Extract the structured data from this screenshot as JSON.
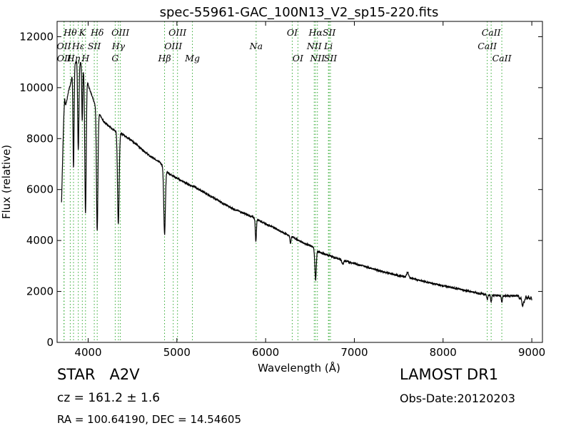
{
  "chart_data": {
    "type": "line",
    "title": "spec-55961-GAC_100N13_V2_sp15-220.fits",
    "xlabel": "Wavelength (Å)",
    "ylabel": "Flux (relative)",
    "xlim": [
      3650,
      9120
    ],
    "ylim": [
      0,
      12600
    ],
    "xticks": [
      4000,
      5000,
      6000,
      7000,
      8000,
      9000
    ],
    "yticks": [
      0,
      2000,
      4000,
      6000,
      8000,
      10000,
      12000
    ],
    "xtick_labels": [
      "4000",
      "5000",
      "6000",
      "7000",
      "8000",
      "9000"
    ],
    "ytick_labels": [
      "0",
      "2000",
      "4000",
      "6000",
      "8000",
      "10000",
      "12000"
    ],
    "grid": false,
    "legend": "none",
    "spectrum_color": "#000000",
    "line_marker_color": "#33aa33",
    "series": [
      {
        "x": [
          3700,
          3715,
          3725,
          3735,
          3745,
          3760,
          3780,
          3800,
          3815,
          3830,
          3850,
          3870,
          3890,
          3910,
          3930,
          3950,
          3970,
          3990,
          4010,
          4040,
          4080,
          4100,
          4130,
          4180,
          4230,
          4280,
          4340,
          4400,
          4500,
          4600,
          4700,
          4800,
          4850,
          4900,
          4950,
          5000,
          5100,
          5200,
          5300,
          5400,
          5500,
          5600,
          5700,
          5800,
          5850,
          5900,
          5950,
          6000,
          6100,
          6200,
          6300,
          6400,
          6500,
          6550,
          6600,
          6700,
          6800,
          6900,
          7000,
          7100,
          7200,
          7300,
          7400,
          7500,
          7600,
          7650,
          7700,
          7800,
          7900,
          8000,
          8100,
          8200,
          8300,
          8400,
          8500,
          8600,
          8700,
          8750,
          8800,
          8850,
          8900,
          8950,
          9000
        ],
        "y": [
          5500,
          7600,
          8800,
          9600,
          9300,
          9500,
          9900,
          10100,
          10400,
          10700,
          10900,
          11100,
          11050,
          11000,
          10900,
          10700,
          10500,
          10300,
          10000,
          9700,
          9300,
          9100,
          8950,
          8650,
          8500,
          8350,
          8250,
          8150,
          7900,
          7600,
          7300,
          7100,
          6900,
          6650,
          6550,
          6450,
          6250,
          6100,
          5900,
          5700,
          5500,
          5300,
          5150,
          5000,
          4920,
          4850,
          4750,
          4650,
          4500,
          4300,
          4150,
          3950,
          3800,
          3700,
          3550,
          3430,
          3300,
          3200,
          3100,
          3000,
          2900,
          2800,
          2700,
          2620,
          2560,
          2520,
          2460,
          2380,
          2300,
          2220,
          2150,
          2080,
          2000,
          1930,
          1870,
          1840,
          1830,
          1830,
          1830,
          1830,
          1830,
          1830,
          1780
        ]
      }
    ],
    "absorption_lines": [
      {
        "wave": 3835,
        "depth": 3900,
        "width": 6
      },
      {
        "wave": 3889,
        "depth": 3500,
        "width": 7
      },
      {
        "wave": 3933,
        "depth": 2200,
        "width": 5
      },
      {
        "wave": 3970,
        "depth": 5400,
        "width": 8
      },
      {
        "wave": 4102,
        "depth": 4700,
        "width": 8
      },
      {
        "wave": 4340,
        "depth": 3600,
        "width": 9
      },
      {
        "wave": 4861,
        "depth": 2600,
        "width": 9
      },
      {
        "wave": 5890,
        "depth": 900,
        "width": 6
      },
      {
        "wave": 6280,
        "depth": 300,
        "width": 6
      },
      {
        "wave": 6563,
        "depth": 1200,
        "width": 8
      },
      {
        "wave": 6870,
        "depth": 150,
        "width": 10
      },
      {
        "wave": 7600,
        "depth": -200,
        "width": 10
      },
      {
        "wave": 8498,
        "depth": 200,
        "width": 6
      },
      {
        "wave": 8542,
        "depth": 250,
        "width": 6
      },
      {
        "wave": 8662,
        "depth": 250,
        "width": 6
      },
      {
        "wave": 8900,
        "depth": 300,
        "width": 12
      }
    ],
    "line_markers": [
      {
        "label": "Hθ",
        "wave": 3798,
        "row": 1
      },
      {
        "label": "OII",
        "wave": 3727,
        "row": 2
      },
      {
        "label": "OII",
        "wave": 3729,
        "row": 3
      },
      {
        "label": "K",
        "wave": 3934,
        "row": 1
      },
      {
        "label": "Hε",
        "wave": 3889,
        "row": 2
      },
      {
        "label": "SII",
        "wave": 4069,
        "row": 2
      },
      {
        "label": "H",
        "wave": 3970,
        "row": 3
      },
      {
        "label": "Hη",
        "wave": 3835,
        "row": 3
      },
      {
        "label": "Hδ",
        "wave": 4102,
        "row": 1
      },
      {
        "label": "OIII",
        "wave": 4363,
        "row": 1
      },
      {
        "label": "Hγ",
        "wave": 4341,
        "row": 2
      },
      {
        "label": "G",
        "wave": 4305,
        "row": 3
      },
      {
        "label": "OIII",
        "wave": 5007,
        "row": 1
      },
      {
        "label": "OIII",
        "wave": 4959,
        "row": 2
      },
      {
        "label": "Hβ",
        "wave": 4861,
        "row": 3
      },
      {
        "label": "Mg",
        "wave": 5175,
        "row": 3
      },
      {
        "label": "Na",
        "wave": 5893,
        "row": 2
      },
      {
        "label": "OI",
        "wave": 6300,
        "row": 1
      },
      {
        "label": "OI",
        "wave": 6364,
        "row": 3
      },
      {
        "label": "Hα",
        "wave": 6563,
        "row": 1
      },
      {
        "label": "SII",
        "wave": 6716,
        "row": 1
      },
      {
        "label": "NII",
        "wave": 6548,
        "row": 2
      },
      {
        "label": "Li",
        "wave": 6708,
        "row": 2
      },
      {
        "label": "NII",
        "wave": 6584,
        "row": 3
      },
      {
        "label": "SII",
        "wave": 6731,
        "row": 3
      },
      {
        "label": "CaII",
        "wave": 8542,
        "row": 1
      },
      {
        "label": "CaII",
        "wave": 8498,
        "row": 2
      },
      {
        "label": "CaII",
        "wave": 8662,
        "row": 3
      }
    ]
  },
  "info": {
    "object_type": "STAR",
    "object_class": "A2V",
    "cz_label": "cz = 161.2 ± 1.6",
    "radec_label": "RA = 100.64190, DEC = 14.54605",
    "survey": "LAMOST DR1",
    "obs_date": "Obs-Date:20120203"
  }
}
